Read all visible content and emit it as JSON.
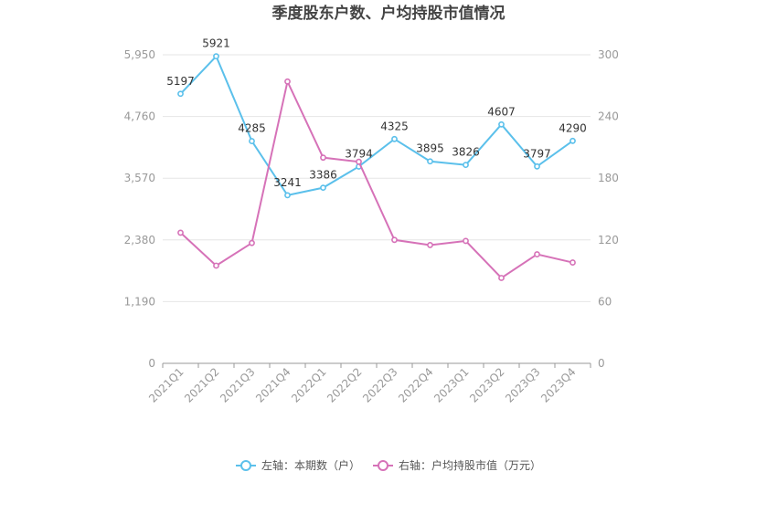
{
  "chart_data": {
    "type": "line",
    "title": "季度股东户数、户均持股市值情况",
    "categories": [
      "2021Q1",
      "2021Q2",
      "2021Q3",
      "2021Q4",
      "2022Q1",
      "2022Q2",
      "2022Q3",
      "2022Q4",
      "2023Q1",
      "2023Q2",
      "2023Q3",
      "2023Q4"
    ],
    "left_axis": {
      "min": 0,
      "max": 5950,
      "ticks": [
        0,
        1190,
        2380,
        3570,
        4760,
        5950
      ],
      "tick_labels": [
        "0",
        "1,190",
        "2,380",
        "3,570",
        "4,760",
        "5,950"
      ]
    },
    "right_axis": {
      "min": 0,
      "max": 300,
      "ticks": [
        0,
        60,
        120,
        180,
        240,
        300
      ],
      "tick_labels": [
        "0",
        "60",
        "120",
        "180",
        "240",
        "300"
      ]
    },
    "grid": true,
    "legend_position": "bottom",
    "series": [
      {
        "name": "左轴：本期数（户）",
        "axis": "left",
        "color": "#5bc0eb",
        "values": [
          5197,
          5921,
          4285,
          3241,
          3386,
          3794,
          4325,
          3895,
          3826,
          4607,
          3797,
          4290
        ],
        "labels": [
          "5197",
          "5921",
          "4285",
          "3241",
          "3386",
          "3794",
          "4325",
          "3895",
          "3826",
          "4607",
          "3797",
          "4290"
        ]
      },
      {
        "name": "右轴：户均持股市值（万元）",
        "axis": "right",
        "color": "#d672b8",
        "values": [
          127,
          95,
          117,
          274,
          200,
          196,
          120,
          115,
          119,
          83,
          106,
          98
        ]
      }
    ]
  }
}
